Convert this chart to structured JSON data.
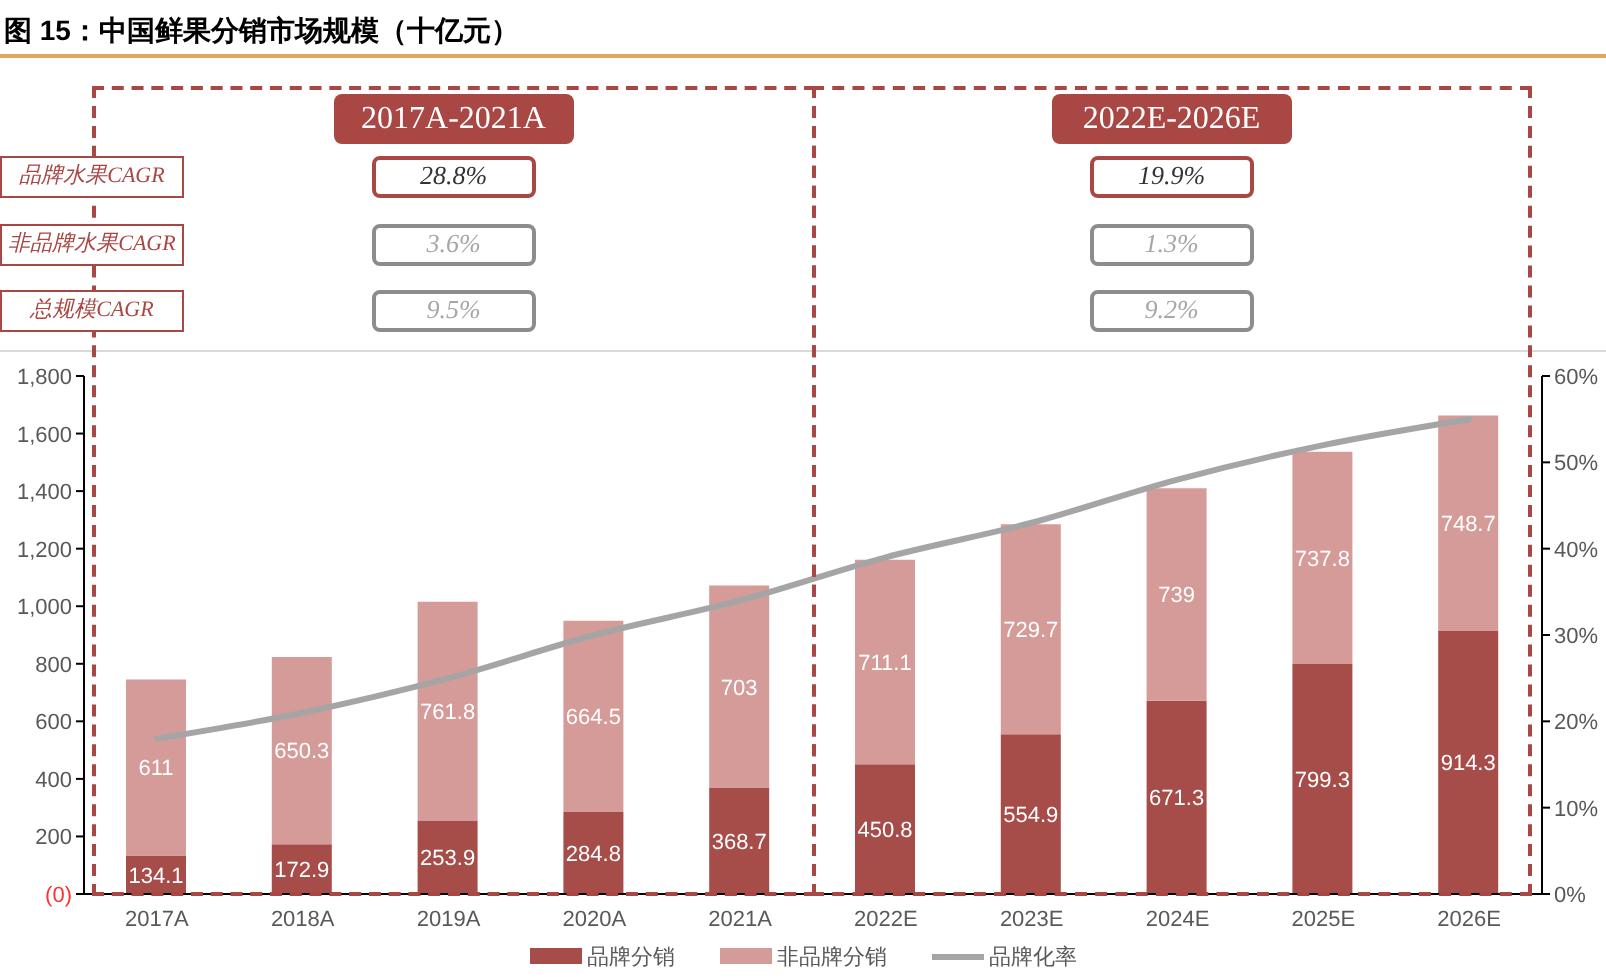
{
  "chart_data": {
    "type": "bar",
    "title": "图 15：中国鲜果分销市场规模（十亿元）",
    "categories": [
      "2017A",
      "2018A",
      "2019A",
      "2020A",
      "2021A",
      "2022E",
      "2023E",
      "2024E",
      "2025E",
      "2026E"
    ],
    "stacked": true,
    "series": [
      {
        "name": "品牌分销",
        "color": "#a64d4a",
        "values": [
          134.1,
          172.9,
          253.9,
          284.8,
          368.7,
          450.8,
          554.9,
          671.3,
          799.3,
          914.3
        ],
        "value_labels": [
          "134.1",
          "172.9",
          "253.9",
          "284.8",
          "368.7",
          "450.8",
          "554.9",
          "671.3",
          "799.3",
          "914.3"
        ]
      },
      {
        "name": "非品牌分销",
        "color": "#d59b98",
        "values": [
          611,
          650.3,
          761.8,
          664.5,
          703,
          711.1,
          729.7,
          739,
          737.8,
          748.7
        ],
        "value_labels": [
          "611",
          "650.3",
          "761.8",
          "664.5",
          "703",
          "711.1",
          "729.7",
          "739",
          "737.8",
          "748.7"
        ]
      },
      {
        "name": "品牌化率",
        "type": "line",
        "axis": "y2",
        "color": "#a5a5a5",
        "values": [
          18,
          21,
          25,
          30,
          34,
          39,
          43,
          48,
          52,
          55
        ]
      }
    ],
    "ylim": [
      0,
      1800
    ],
    "yticks": [
      {
        "value": 0,
        "label": "(0)"
      },
      200,
      400,
      600,
      800,
      {
        "value": 1000,
        "label": "1,000"
      },
      {
        "value": 1200,
        "label": "1,200"
      },
      {
        "value": 1400,
        "label": "1,400"
      },
      {
        "value": 1600,
        "label": "1,600"
      },
      {
        "value": 1800,
        "label": "1,800"
      }
    ],
    "y2lim": [
      0,
      60
    ],
    "y2ticks": [
      {
        "value": 0,
        "label": "0%"
      },
      {
        "value": 10,
        "label": "10%"
      },
      {
        "value": 20,
        "label": "20%"
      },
      {
        "value": 30,
        "label": "30%"
      },
      {
        "value": 40,
        "label": "40%"
      },
      {
        "value": 50,
        "label": "50%"
      },
      {
        "value": 60,
        "label": "60%"
      }
    ],
    "legend": "bottom",
    "marker": "none",
    "annotations": [
      "2017A-2021A",
      "2022E-2026E",
      "品牌水果CAGR",
      "非品牌水果CAGR",
      "总规模CAGR",
      "28.8%",
      "3.6%",
      "9.5%",
      "19.9%",
      "1.3%",
      "9.2%"
    ]
  }
}
